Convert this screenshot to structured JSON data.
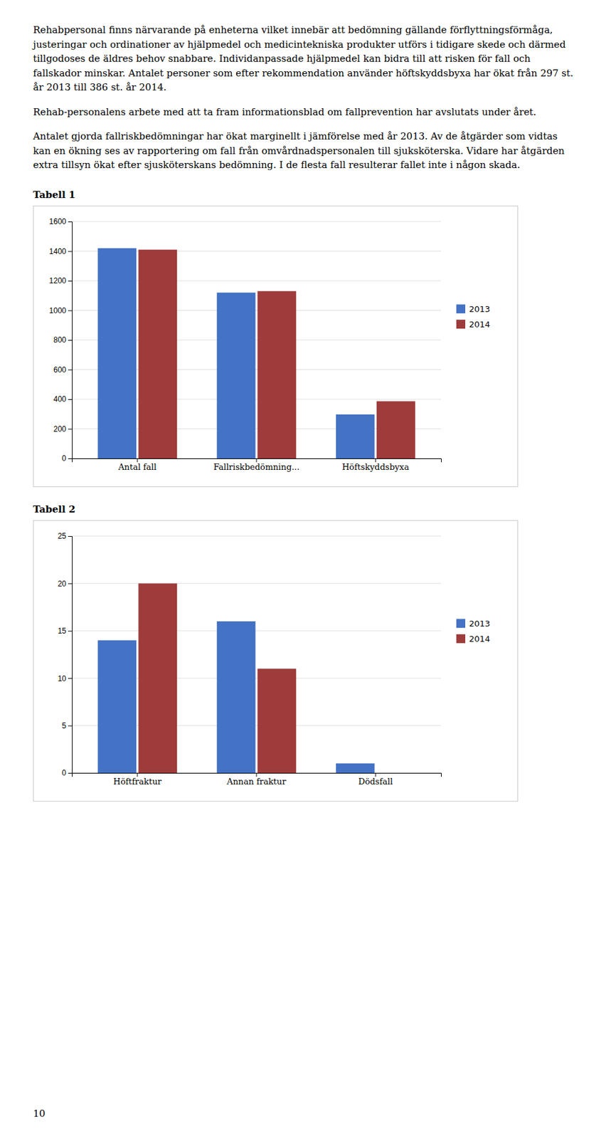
{
  "paragraphs": [
    "Rehabpersonal finns närvarande på enheterna vilket innebär att bedömning gällande förflyttningsförmåga, justeringar och ordinationer av hjälpmedel och medicintekniska produkter utförs i tidigare skede och därmed tillgodoses de äldres behov snabbare. Individanpassade hjälpmedel kan bidra till att risken för fall och fallskador minskar. Antalet personer som efter rekommendation använder höftskyddsbyxa har ökat från 297 st. år 2013 till 386 st. år 2014.",
    "Rehab-personalens arbete med att ta fram informationsblad om fallprevention har avslutats under året.",
    "Antalet gjorda fallriskbedömningar har ökat marginellt i jämförelse med år 2013. Av de åtgärder som vidtas kan en ökning ses av rapportering om fall från omvårdnadspersonalen till sjuksköterska. Vidare har åtgärden extra tillsyn ökat efter sjusköterskans bedömning. I de flesta fall resulterar fallet inte i någon skada."
  ],
  "page_number": "10",
  "chart_data": [
    {
      "type": "bar",
      "title": "Tabell 1",
      "categories": [
        "Antal fall",
        "Fallriskbedömning...",
        "Höftskyddsbyxa"
      ],
      "series": [
        {
          "name": "2013",
          "color": "#4472C4",
          "values": [
            1420,
            1120,
            297
          ]
        },
        {
          "name": "2014",
          "color": "#9E3B3B",
          "values": [
            1410,
            1130,
            386
          ]
        }
      ],
      "ylim": [
        0,
        1600
      ],
      "yticks": [
        0,
        200,
        400,
        600,
        800,
        1000,
        1200,
        1400,
        1600
      ],
      "grid": true,
      "legend": "right"
    },
    {
      "type": "bar",
      "title": "Tabell 2",
      "categories": [
        "Höftfraktur",
        "Annan fraktur",
        "Dödsfall"
      ],
      "series": [
        {
          "name": "2013",
          "color": "#4472C4",
          "values": [
            14,
            16,
            1
          ]
        },
        {
          "name": "2014",
          "color": "#9E3B3B",
          "values": [
            20,
            11,
            0
          ]
        }
      ],
      "ylim": [
        0,
        25
      ],
      "yticks": [
        0,
        5,
        10,
        15,
        20,
        25
      ],
      "grid": true,
      "legend": "right"
    }
  ]
}
